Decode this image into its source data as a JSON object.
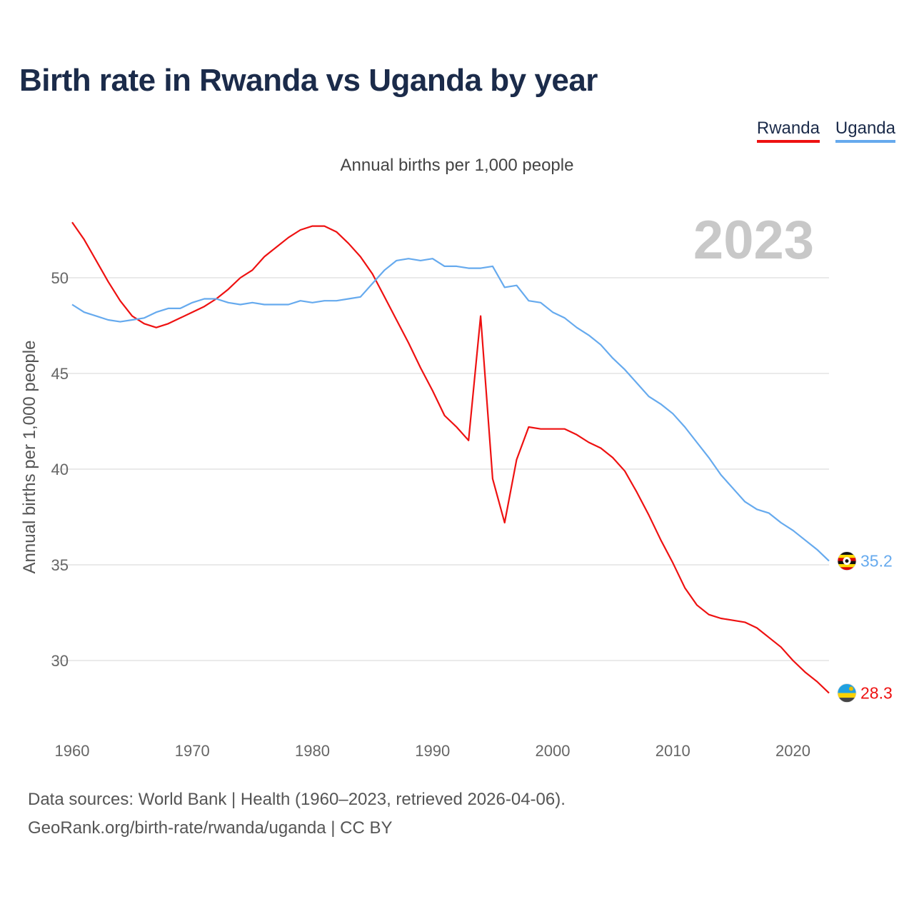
{
  "title": "Birth rate in Rwanda vs Uganda by year",
  "legend": [
    {
      "label": "Rwanda",
      "color": "#ee1111"
    },
    {
      "label": "Uganda",
      "color": "#66aaee"
    }
  ],
  "footer": {
    "line1": "Data sources: World Bank | Health (1960–2023, retrieved 2026-04-06).",
    "line2": "GeoRank.org/birth-rate/rwanda/uganda | CC BY"
  },
  "chart_data": {
    "type": "line",
    "title": "Birth rate in Rwanda vs Uganda by year",
    "subtitle": "Annual births per 1,000 people",
    "ylabel": "Annual births per 1,000 people",
    "xlabel": "",
    "year_label": "2023",
    "xlim": [
      1960,
      2023
    ],
    "ylim": [
      28,
      53
    ],
    "x_ticks": [
      1960,
      1970,
      1980,
      1990,
      2000,
      2010,
      2020
    ],
    "y_ticks": [
      30,
      35,
      40,
      45,
      50
    ],
    "grid": true,
    "x": [
      1960,
      1961,
      1962,
      1963,
      1964,
      1965,
      1966,
      1967,
      1968,
      1969,
      1970,
      1971,
      1972,
      1973,
      1974,
      1975,
      1976,
      1977,
      1978,
      1979,
      1980,
      1981,
      1982,
      1983,
      1984,
      1985,
      1986,
      1987,
      1988,
      1989,
      1990,
      1991,
      1992,
      1993,
      1994,
      1995,
      1996,
      1997,
      1998,
      1999,
      2000,
      2001,
      2002,
      2003,
      2004,
      2005,
      2006,
      2007,
      2008,
      2009,
      2010,
      2011,
      2012,
      2013,
      2014,
      2015,
      2016,
      2017,
      2018,
      2019,
      2020,
      2021,
      2022,
      2023
    ],
    "series": [
      {
        "name": "Rwanda",
        "color": "#ee1111",
        "end_label": "28.3",
        "values": [
          52.9,
          52.0,
          50.9,
          49.8,
          48.8,
          48.0,
          47.6,
          47.4,
          47.6,
          47.9,
          48.2,
          48.5,
          48.9,
          49.4,
          50.0,
          50.4,
          51.1,
          51.6,
          52.1,
          52.5,
          52.7,
          52.7,
          52.4,
          51.8,
          51.1,
          50.2,
          49.0,
          47.8,
          46.6,
          45.3,
          44.1,
          42.8,
          42.2,
          41.5,
          48.0,
          39.5,
          37.2,
          40.5,
          42.2,
          42.1,
          42.1,
          42.1,
          41.8,
          41.4,
          41.1,
          40.6,
          39.9,
          38.8,
          37.6,
          36.3,
          35.1,
          33.8,
          32.9,
          32.4,
          32.2,
          32.1,
          32.0,
          31.7,
          31.2,
          30.7,
          30.0,
          29.4,
          28.9,
          28.3
        ]
      },
      {
        "name": "Uganda",
        "color": "#66aaee",
        "end_label": "35.2",
        "values": [
          48.6,
          48.2,
          48.0,
          47.8,
          47.7,
          47.8,
          47.9,
          48.2,
          48.4,
          48.4,
          48.7,
          48.9,
          48.9,
          48.7,
          48.6,
          48.7,
          48.6,
          48.6,
          48.6,
          48.8,
          48.7,
          48.8,
          48.8,
          48.9,
          49.0,
          49.7,
          50.4,
          50.9,
          51.0,
          50.9,
          51.0,
          50.6,
          50.6,
          50.5,
          50.5,
          50.6,
          49.5,
          49.6,
          48.8,
          48.7,
          48.2,
          47.9,
          47.4,
          47.0,
          46.5,
          45.8,
          45.2,
          44.5,
          43.8,
          43.4,
          42.9,
          42.2,
          41.4,
          40.6,
          39.7,
          39.0,
          38.3,
          37.9,
          37.7,
          37.2,
          36.8,
          36.3,
          35.8,
          35.2
        ]
      }
    ]
  }
}
